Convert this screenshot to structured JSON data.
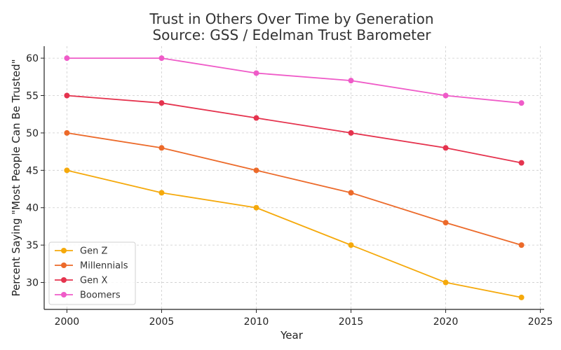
{
  "chart_data": {
    "type": "line",
    "title": "Trust in Others Over Time by Generation",
    "subtitle": "Source: GSS / Edelman Trust Barometer",
    "xlabel": "Year",
    "ylabel": "Percent Saying \"Most People Can Be Trusted\"",
    "x": [
      2000,
      2005,
      2010,
      2015,
      2020,
      2024
    ],
    "xlim": [
      1998.8,
      2025.2
    ],
    "ylim": [
      26.4,
      61.6
    ],
    "xticks": [
      2000,
      2005,
      2010,
      2015,
      2020,
      2025
    ],
    "yticks": [
      30,
      35,
      40,
      45,
      50,
      55,
      60
    ],
    "grid": true,
    "legend_position": "lower-left",
    "series": [
      {
        "name": "Gen Z",
        "color": "#f5a90b",
        "values": [
          45,
          42,
          40,
          35,
          30,
          28
        ]
      },
      {
        "name": "Millennials",
        "color": "#ec6a2a",
        "values": [
          50,
          48,
          45,
          42,
          38,
          35
        ]
      },
      {
        "name": "Gen X",
        "color": "#e5334e",
        "values": [
          55,
          54,
          52,
          50,
          48,
          46
        ]
      },
      {
        "name": "Boomers",
        "color": "#ef5bc8",
        "values": [
          60,
          60,
          58,
          57,
          55,
          54
        ]
      }
    ]
  }
}
